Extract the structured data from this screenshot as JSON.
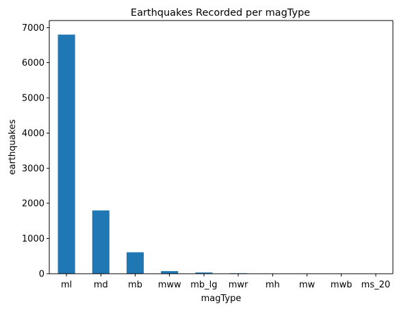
{
  "chart_data": {
    "type": "bar",
    "title": "Earthquakes Recorded per magType",
    "xlabel": "magType",
    "ylabel": "earthquakes",
    "categories": [
      "ml",
      "md",
      "mb",
      "mww",
      "mb_lg",
      "mwr",
      "mh",
      "mw",
      "mwb",
      "ms_20"
    ],
    "values": [
      6800,
      1800,
      610,
      75,
      35,
      15,
      10,
      10,
      10,
      2
    ],
    "ylim": [
      0,
      7200
    ],
    "yticks": [
      0,
      1000,
      2000,
      3000,
      4000,
      5000,
      6000,
      7000
    ],
    "ytick_labels": [
      "0",
      "1000",
      "2000",
      "3000",
      "4000",
      "5000",
      "6000",
      "7000"
    ],
    "bar_color": "#1f77b4",
    "grid": false,
    "legend": "none"
  }
}
